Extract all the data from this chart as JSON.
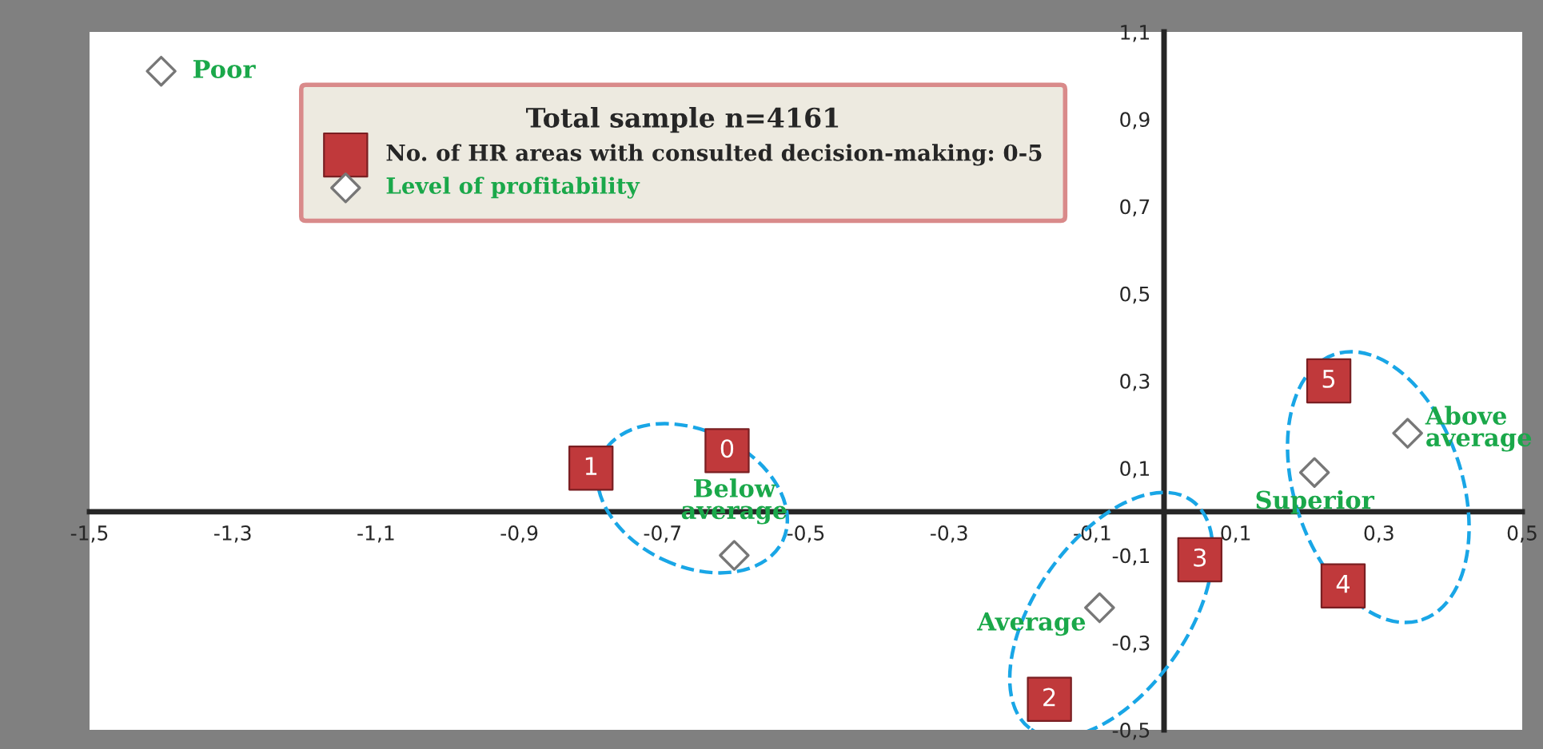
{
  "chart_data": {
    "type": "scatter",
    "legend_title": "Total sample n=4161",
    "legend": "top left",
    "grid": false,
    "xlim": [
      -1.5,
      0.5
    ],
    "ylim": [
      -0.5,
      1.1
    ],
    "xticks": [
      {
        "value": -1.5,
        "label": "-1,5"
      },
      {
        "value": -1.3,
        "label": "-1,3"
      },
      {
        "value": -1.1,
        "label": "-1,1"
      },
      {
        "value": -0.9,
        "label": "-0,9"
      },
      {
        "value": -0.7,
        "label": "-0,7"
      },
      {
        "value": -0.5,
        "label": "-0,5"
      },
      {
        "value": -0.3,
        "label": "-0,3"
      },
      {
        "value": -0.1,
        "label": "-0,1"
      },
      {
        "value": 0.1,
        "label": "0,1"
      },
      {
        "value": 0.3,
        "label": "0,3"
      },
      {
        "value": 0.5,
        "label": "0,5"
      }
    ],
    "yticks": [
      {
        "value": -0.5,
        "label": "-0,5"
      },
      {
        "value": -0.3,
        "label": "-0,3"
      },
      {
        "value": -0.1,
        "label": "-0,1"
      },
      {
        "value": 0.1,
        "label": "0,1"
      },
      {
        "value": 0.3,
        "label": "0,3"
      },
      {
        "value": 0.5,
        "label": "0,5"
      },
      {
        "value": 0.7,
        "label": "0,7"
      },
      {
        "value": 0.9,
        "label": "0,9"
      },
      {
        "value": 1.1,
        "label": "1,1"
      }
    ],
    "series": [
      {
        "name": "No. of HR areas with consulted decision-making: 0-5",
        "color": "#c0393b",
        "marker": "square",
        "x": [
          -0.61,
          -0.8,
          -0.16,
          0.05,
          0.25,
          0.23
        ],
        "values": [
          0.14,
          0.1,
          -0.43,
          -0.11,
          -0.17,
          0.3
        ]
      },
      {
        "name": "Level of profitability",
        "color": "#ffffff",
        "marker": "diamond",
        "x": [
          -1.4,
          -0.6,
          -0.09,
          0.34,
          0.21
        ],
        "values": [
          1.01,
          -0.1,
          -0.22,
          0.18,
          0.09
        ]
      }
    ],
    "annotations": [
      {
        "text": "0",
        "x": -0.61,
        "y": 0.14
      },
      {
        "text": "1",
        "x": -0.8,
        "y": 0.1
      },
      {
        "text": "2",
        "x": -0.16,
        "y": -0.43
      },
      {
        "text": "3",
        "x": 0.05,
        "y": -0.11
      },
      {
        "text": "4",
        "x": 0.25,
        "y": -0.17
      },
      {
        "text": "5",
        "x": 0.23,
        "y": 0.3
      },
      {
        "text": "Poor",
        "x": -1.4,
        "y": 1.01
      },
      {
        "text": "Below average",
        "x": -0.6,
        "y": -0.1
      },
      {
        "text": "Average",
        "x": -0.09,
        "y": -0.22
      },
      {
        "text": "Above average",
        "x": 0.34,
        "y": 0.18
      },
      {
        "text": "Superior",
        "x": 0.21,
        "y": 0.09
      }
    ]
  }
}
